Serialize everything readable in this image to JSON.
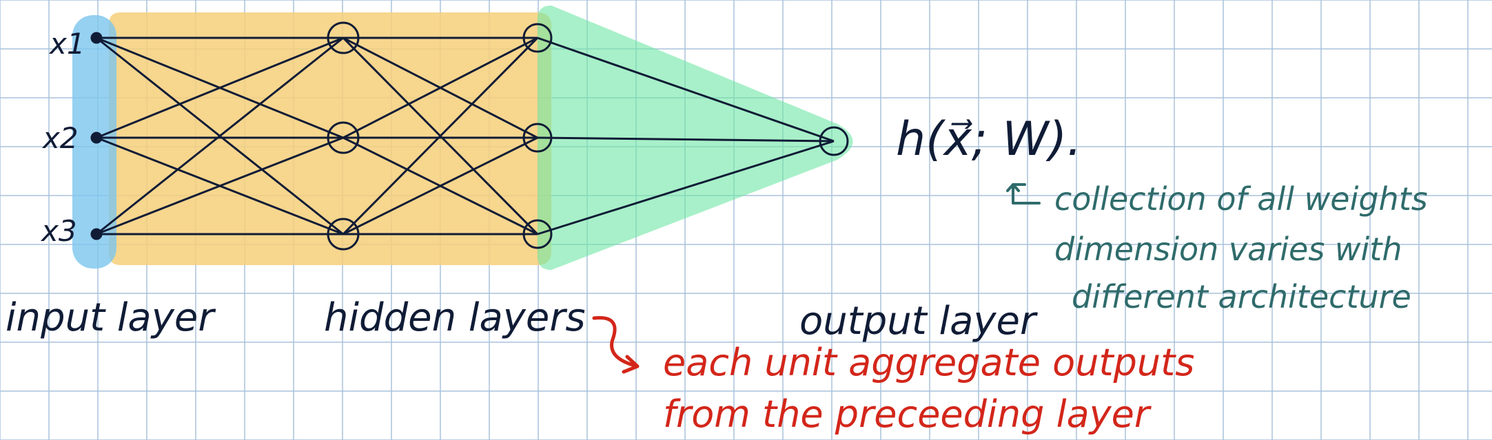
{
  "diagram": {
    "inputs": [
      "x1",
      "x2",
      "x3"
    ],
    "labels": {
      "input_layer": "input layer",
      "hidden_layers": "hidden layers",
      "output_layer": "output layer",
      "function": "h(x⃗; W)."
    },
    "annotations": {
      "weights": [
        "collection of all weights",
        "dimension varies with",
        "different architecture"
      ],
      "aggregate": [
        "each unit aggregate outputs",
        "from the preceeding layer"
      ]
    },
    "colors": {
      "grid": "#a9c2dc",
      "ink": "#101c36",
      "input_region": "#7cc6ee",
      "hidden_region": "#f6cf7a",
      "output_region": "#6ee6a5",
      "annotation_teal": "#2f6b6b",
      "annotation_red": "#d3261a"
    }
  }
}
